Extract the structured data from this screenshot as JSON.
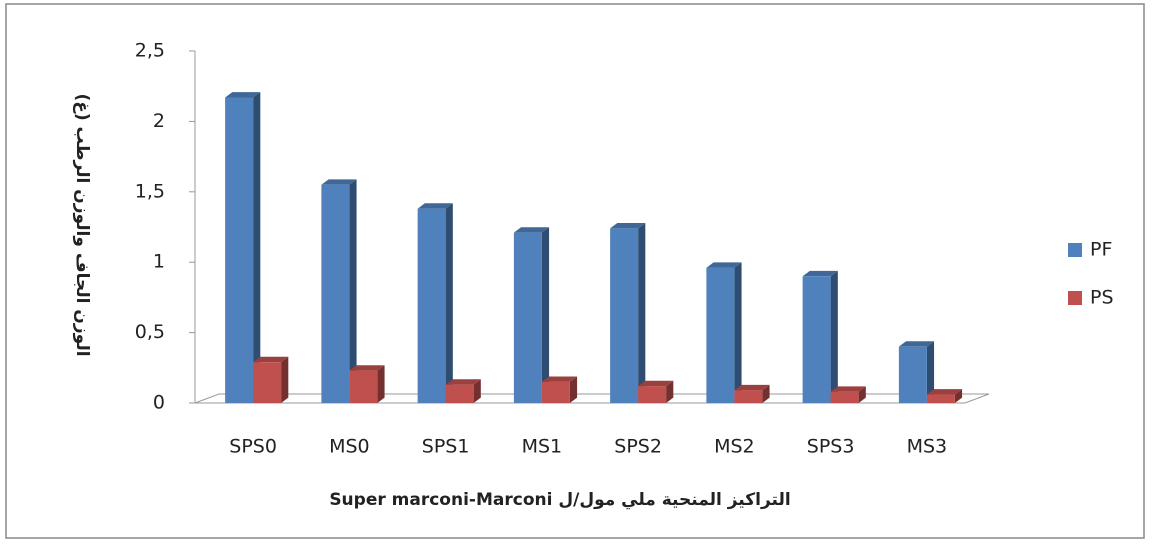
{
  "chart_data": {
    "type": "bar",
    "x_label": "التراكيز المنحية ملي مول/ل Super marconi-Marconi",
    "y_label": "الوزن الجاف والوزن الرطب (غ)",
    "categories": [
      "SPS0",
      "MS0",
      "SPS1",
      "MS1",
      "SPS2",
      "MS2",
      "SPS3",
      "MS3"
    ],
    "series": [
      {
        "name": "PF",
        "color": "#4f81bd",
        "values": [
          2.17,
          1.55,
          1.38,
          1.21,
          1.24,
          0.96,
          0.9,
          0.4
        ]
      },
      {
        "name": "PS",
        "color": "#c0504d",
        "values": [
          0.29,
          0.23,
          0.13,
          0.15,
          0.12,
          0.09,
          0.08,
          0.06
        ]
      }
    ],
    "ylim": [
      0,
      2.5
    ],
    "yticks": [
      0,
      {
        "value": 0.5,
        "label": "0,5"
      },
      1,
      {
        "value": 1.5,
        "label": "1,5"
      },
      2,
      {
        "value": 2.5,
        "label": "2,5"
      }
    ],
    "legend": "right"
  }
}
